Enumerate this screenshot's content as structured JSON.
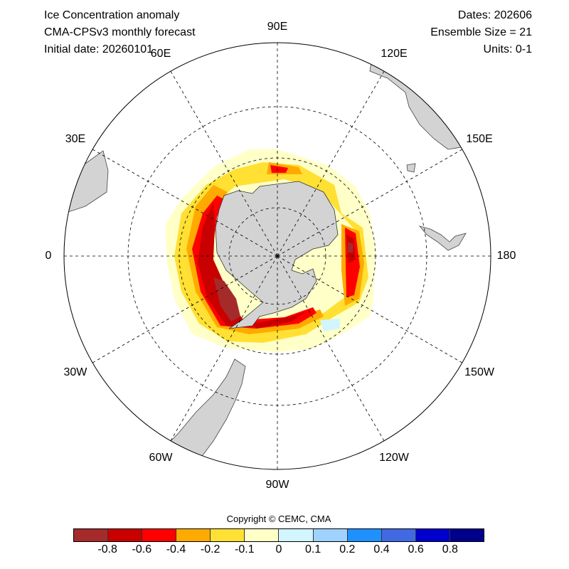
{
  "header": {
    "title": "Ice Concentration anomaly",
    "subtitle": "CMA-CPSv3 monthly forecast",
    "initial_date": "Initial date: 20260101",
    "dates": "Dates: 202606",
    "ensemble": "Ensemble Size = 21",
    "units": "Units: 0-1"
  },
  "map": {
    "projection": "south polar stereographic",
    "longitude_labels": [
      "90E",
      "120E",
      "150E",
      "180",
      "150W",
      "120W",
      "90W",
      "60W",
      "30W",
      "0",
      "30E",
      "60E"
    ],
    "land_color": "#d3d3d3"
  },
  "legend": {
    "copyright": "Copyright © CEMC, CMA",
    "colors": [
      "#a52a2a",
      "#c80000",
      "#ff0000",
      "#ffaa00",
      "#ffe033",
      "#ffffc8",
      "#d2f5ff",
      "#a0d2ff",
      "#1e90ff",
      "#4169e1",
      "#0000cd",
      "#00008b"
    ],
    "ticks": [
      "-0.8",
      "-0.6",
      "-0.4",
      "-0.2",
      "-0.1",
      "0",
      "0.1",
      "0.2",
      "0.4",
      "0.6",
      "0.8"
    ]
  }
}
